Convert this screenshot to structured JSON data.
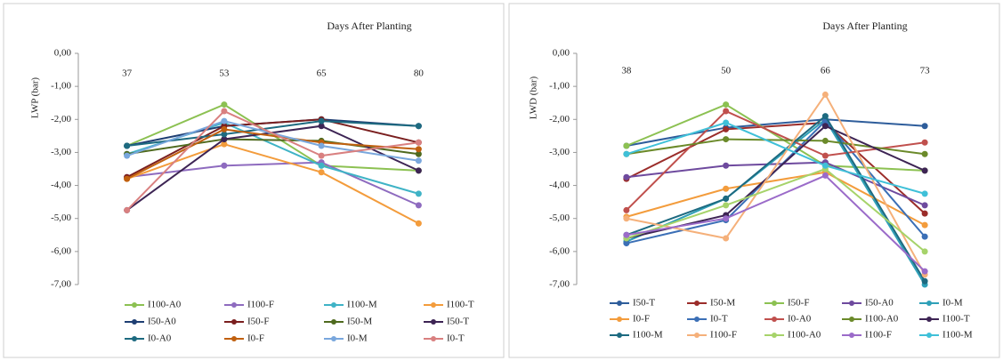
{
  "chart_data": [
    {
      "type": "line",
      "title": "Days After Planting",
      "y_label": "LWP (bar)",
      "categories": [
        "37",
        "53",
        "65",
        "80"
      ],
      "ylim": [
        -7,
        0
      ],
      "yticks": [
        {
          "value": 0,
          "label": "0,00"
        },
        {
          "value": -1,
          "label": "-1,00"
        },
        {
          "value": -2,
          "label": "-2,00"
        },
        {
          "value": -3,
          "label": "-3,00"
        },
        {
          "value": -4,
          "label": "-4,00"
        },
        {
          "value": -5,
          "label": "-5,00"
        },
        {
          "value": -6,
          "label": "-6,00"
        },
        {
          "value": -7,
          "label": "-7,00"
        }
      ],
      "series": [
        {
          "name": "I100-A0",
          "color": "#8cc152",
          "values": [
            -2.8,
            -1.55,
            -3.4,
            -3.55
          ]
        },
        {
          "name": "I100-F",
          "color": "#8e6bbf",
          "values": [
            -3.75,
            -3.4,
            -3.3,
            -4.6
          ]
        },
        {
          "name": "I100-M",
          "color": "#3fb3c6",
          "values": [
            -3.05,
            -2.1,
            -3.4,
            -4.25
          ]
        },
        {
          "name": "I100-T",
          "color": "#f39c3c",
          "values": [
            -3.8,
            -2.75,
            -3.6,
            -5.15
          ]
        },
        {
          "name": "I50-A0",
          "color": "#1f3f73",
          "values": [
            -2.8,
            -2.2,
            -2.0,
            -2.2
          ]
        },
        {
          "name": "I50-F",
          "color": "#7a1f1f",
          "values": [
            -3.75,
            -2.2,
            -2.0,
            -2.7
          ]
        },
        {
          "name": "I50-M",
          "color": "#4f6a1f",
          "values": [
            -3.05,
            -2.6,
            -2.65,
            -3.05
          ]
        },
        {
          "name": "I50-T",
          "color": "#3d2454",
          "values": [
            -4.75,
            -2.6,
            -2.2,
            -3.55
          ]
        },
        {
          "name": "I0-A0",
          "color": "#1d6a80",
          "values": [
            -2.8,
            -2.45,
            -2.05,
            -2.2
          ]
        },
        {
          "name": "I0-F",
          "color": "#c0600f",
          "values": [
            -3.8,
            -2.3,
            -2.7,
            -2.9
          ]
        },
        {
          "name": "I0-M",
          "color": "#79a7dd",
          "values": [
            -3.1,
            -2.05,
            -2.8,
            -3.25
          ]
        },
        {
          "name": "I0-T",
          "color": "#d98080",
          "values": [
            -4.75,
            -1.75,
            -3.1,
            -2.7
          ]
        }
      ]
    },
    {
      "type": "line",
      "title": "Days After Planting",
      "y_label": "LWD (bar)",
      "categories": [
        "38",
        "50",
        "66",
        "73"
      ],
      "ylim": [
        -7,
        0
      ],
      "yticks": [
        {
          "value": 0,
          "label": "0,00"
        },
        {
          "value": -1,
          "label": "-1,00"
        },
        {
          "value": -2,
          "label": "-2,00"
        },
        {
          "value": -3,
          "label": "-3,00"
        },
        {
          "value": -4,
          "label": "-4,00"
        },
        {
          "value": -5,
          "label": "-5,00"
        },
        {
          "value": -6,
          "label": "-6,00"
        },
        {
          "value": -7,
          "label": "-7,00"
        }
      ],
      "series": [
        {
          "name": "I50-T",
          "color": "#2e5d9b",
          "values": [
            -2.8,
            -2.25,
            -2.0,
            -2.2
          ]
        },
        {
          "name": "I50-M",
          "color": "#9b2d2a",
          "values": [
            -3.8,
            -2.3,
            -2.1,
            -4.85
          ]
        },
        {
          "name": "I50-F",
          "color": "#8cc152",
          "values": [
            -2.8,
            -1.55,
            -3.4,
            -3.55
          ]
        },
        {
          "name": "I50-A0",
          "color": "#6e4a9e",
          "values": [
            -3.75,
            -3.4,
            -3.3,
            -4.6
          ]
        },
        {
          "name": "I0-M",
          "color": "#2fa0b8",
          "values": [
            -5.7,
            -4.4,
            -2.0,
            -7.0
          ]
        },
        {
          "name": "I0-F",
          "color": "#f39c3c",
          "values": [
            -4.95,
            -4.1,
            -3.6,
            -5.2
          ]
        },
        {
          "name": "I0-T",
          "color": "#3b6fb6",
          "values": [
            -5.75,
            -5.05,
            -2.05,
            -5.55
          ]
        },
        {
          "name": "I0-A0",
          "color": "#c0504d",
          "values": [
            -4.75,
            -1.75,
            -3.1,
            -2.7
          ]
        },
        {
          "name": "I100-A0",
          "color": "#6b8a2a",
          "values": [
            -3.05,
            -2.6,
            -2.65,
            -3.05
          ]
        },
        {
          "name": "I100-T",
          "color": "#3d2454",
          "values": [
            -5.6,
            -4.9,
            -2.2,
            -3.55
          ]
        },
        {
          "name": "I100-M",
          "color": "#1d6a80",
          "values": [
            -5.5,
            -4.4,
            -1.9,
            -6.9
          ]
        },
        {
          "name": "I100-F",
          "color": "#f5b07a",
          "values": [
            -5.0,
            -5.6,
            -1.25,
            -6.7
          ]
        },
        {
          "name": "I100-A0",
          "color": "#a6d36a",
          "values": [
            -5.6,
            -4.6,
            -3.5,
            -6.0
          ]
        },
        {
          "name": "I100-F",
          "color": "#9b6bc9",
          "values": [
            -5.5,
            -5.0,
            -3.7,
            -6.6
          ]
        },
        {
          "name": "I100-M",
          "color": "#3fc0d8",
          "values": [
            -3.05,
            -2.1,
            -3.4,
            -4.25
          ]
        }
      ]
    }
  ]
}
